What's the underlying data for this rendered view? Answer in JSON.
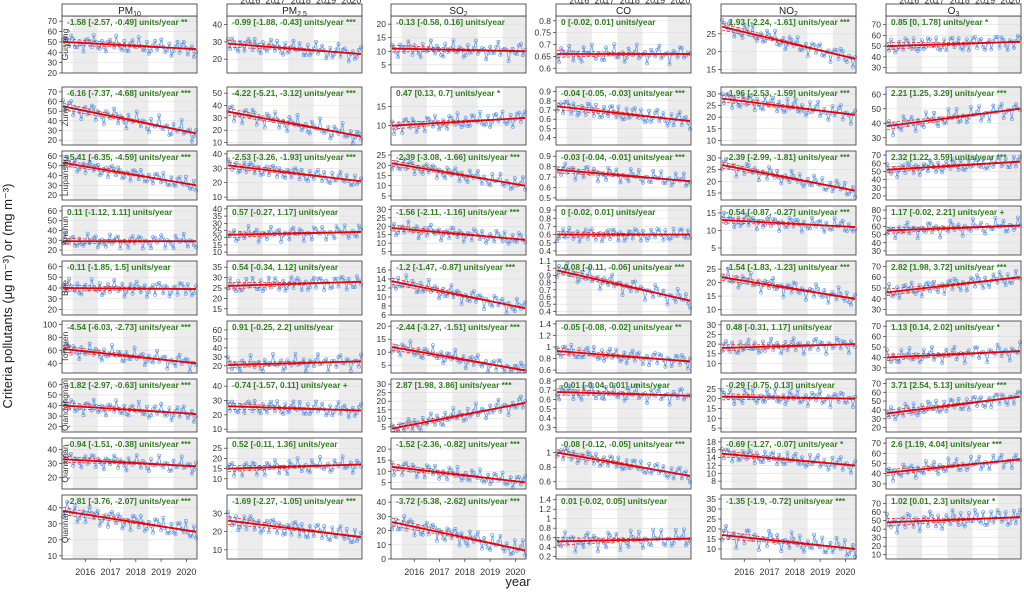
{
  "chart_data": {
    "type": "line",
    "xlabel": "year",
    "ylabel": "Criteria pollutants (μg m⁻³)  or  (mg m⁻³)",
    "x_ticks": [
      "2016",
      "2017",
      "2018",
      "2019",
      "2020"
    ],
    "pollutants": [
      "PM10",
      "PM2.5",
      "SO2",
      "CO",
      "NO2",
      "O3"
    ],
    "pollutant_labels": [
      {
        "base": "PM",
        "sub": "10"
      },
      {
        "base": "PM",
        "sub": "2.5"
      },
      {
        "base": "SO",
        "sub": "2"
      },
      {
        "base": "CO",
        "sub": ""
      },
      {
        "base": "NO",
        "sub": "2"
      },
      {
        "base": "O",
        "sub": "3"
      }
    ],
    "cities": [
      "Guiyang",
      "Zunyi",
      "Liupanshui",
      "Anshun",
      "Bijie",
      "Tongren",
      "Qiandongnan",
      "Qianxinan",
      "Qiannan"
    ],
    "panels": [
      [
        {
          "trend": "-1.58 [-2.57, -0.49] units/year **",
          "ylim": [
            20,
            75
          ],
          "ticks": [
            20,
            30,
            40,
            50,
            60,
            70
          ],
          "start": 50,
          "end": 43
        },
        {
          "trend": "-0.99 [-1.88, -0.43] units/year ***",
          "ylim": [
            12,
            45
          ],
          "ticks": [
            20,
            30,
            40
          ],
          "start": 29,
          "end": 23
        },
        {
          "trend": "-0.13 [-0.58, 0.16] units/year",
          "ylim": [
            2,
            23
          ],
          "ticks": [
            5,
            10,
            15,
            20
          ],
          "start": 11,
          "end": 10
        },
        {
          "trend": "0 [-0.02, 0.01] units/year",
          "ylim": [
            0.58,
            0.82
          ],
          "ticks": [
            0.6,
            0.65,
            0.7,
            0.75,
            0.8
          ],
          "start": 0.66,
          "end": 0.66
        },
        {
          "trend": "-1.93 [-2.24, -1.61] units/year ***",
          "ylim": [
            14,
            30
          ],
          "ticks": [
            15,
            20,
            25
          ],
          "start": 27,
          "end": 18
        },
        {
          "trend": "0.85 [0, 1.78] units/year *",
          "ylim": [
            25,
            78
          ],
          "ticks": [
            30,
            40,
            50,
            60,
            70
          ],
          "start": 50,
          "end": 54
        }
      ],
      [
        {
          "trend": "-6.16 [-7.37, -4.68] units/year ***",
          "ylim": [
            15,
            75
          ],
          "ticks": [
            20,
            30,
            40,
            50,
            60,
            70
          ],
          "start": 55,
          "end": 27
        },
        {
          "trend": "-4.22 [-5.21, -3.12] units/year ***",
          "ylim": [
            8,
            55
          ],
          "ticks": [
            10,
            20,
            30,
            40,
            50
          ],
          "start": 35,
          "end": 15
        },
        {
          "trend": "0.47 [0.13, 0.7] units/year *",
          "ylim": [
            5,
            20
          ],
          "ticks": [
            10,
            15
          ],
          "start": 10,
          "end": 12
        },
        {
          "trend": "-0.04 [-0.05, -0.03] units/year ***",
          "ylim": [
            0.32,
            0.95
          ],
          "ticks": [
            0.4,
            0.5,
            0.6,
            0.7,
            0.8,
            0.9
          ],
          "start": 0.74,
          "end": 0.58
        },
        {
          "trend": "-1.96 [-2.53, -1.59] units/year ***",
          "ylim": [
            8,
            33
          ],
          "ticks": [
            10,
            15,
            20,
            25,
            30
          ],
          "start": 28,
          "end": 21
        },
        {
          "trend": "2.21 [1.25, 3.29] units/year ***",
          "ylim": [
            25,
            65
          ],
          "ticks": [
            30,
            40,
            50,
            60
          ],
          "start": 38,
          "end": 50
        }
      ],
      [
        {
          "trend": "-5.41 [-6.35, -4.59] units/year ***",
          "ylim": [
            15,
            65
          ],
          "ticks": [
            20,
            30,
            40,
            50,
            60
          ],
          "start": 53,
          "end": 30
        },
        {
          "trend": "-2.53 [-3.26, -1.93] units/year ***",
          "ylim": [
            8,
            42
          ],
          "ticks": [
            10,
            20,
            30,
            40
          ],
          "start": 32,
          "end": 21
        },
        {
          "trend": "-2.39 [-3.08, -1.66] units/year ***",
          "ylim": [
            3,
            27
          ],
          "ticks": [
            5,
            10,
            15,
            20,
            25
          ],
          "start": 21,
          "end": 10
        },
        {
          "trend": "-0.03 [-0.04, -0.01] units/year ***",
          "ylim": [
            0.48,
            0.95
          ],
          "ticks": [
            0.5,
            0.6,
            0.7,
            0.8,
            0.9
          ],
          "start": 0.77,
          "end": 0.66
        },
        {
          "trend": "-2.39 [-2.99, -1.81] units/year ***",
          "ylim": [
            12,
            33
          ],
          "ticks": [
            15,
            20,
            25,
            30
          ],
          "start": 27,
          "end": 16
        },
        {
          "trend": "2.32 [1.22, 3.59] units/year ***",
          "ylim": [
            15,
            75
          ],
          "ticks": [
            20,
            30,
            40,
            50,
            60,
            70
          ],
          "start": 52,
          "end": 62
        }
      ],
      [
        {
          "trend": "0.11 [-1.12, 1.11] units/year",
          "ylim": [
            15,
            65
          ],
          "ticks": [
            20,
            30,
            40,
            50,
            60
          ],
          "start": 29,
          "end": 29
        },
        {
          "trend": "0.57 [-0.27, 1.17] units/year",
          "ylim": [
            8,
            42
          ],
          "ticks": [
            10,
            15,
            20,
            25,
            30,
            35,
            40
          ],
          "start": 22,
          "end": 24
        },
        {
          "trend": "-1.56 [-2.11, -1.16] units/year ***",
          "ylim": [
            3,
            32
          ],
          "ticks": [
            5,
            10,
            15,
            20,
            25,
            30
          ],
          "start": 19,
          "end": 12
        },
        {
          "trend": "0 [-0.02, 0.01] units/year",
          "ylim": [
            0.35,
            0.95
          ],
          "ticks": [
            0.4,
            0.5,
            0.6,
            0.7,
            0.8,
            0.9
          ],
          "start": 0.6,
          "end": 0.6
        },
        {
          "trend": "-0.54 [-0.87, -0.27] units/year ***",
          "ylim": [
            3,
            17
          ],
          "ticks": [
            5,
            10,
            15
          ],
          "start": 13,
          "end": 11
        },
        {
          "trend": "1.17 [-0.02, 2.21] units/year +",
          "ylim": [
            25,
            85
          ],
          "ticks": [
            30,
            40,
            50,
            60,
            70,
            80
          ],
          "start": 55,
          "end": 61
        }
      ],
      [
        {
          "trend": "-0.11 [-1.85, 1.5] units/year",
          "ylim": [
            15,
            65
          ],
          "ticks": [
            20,
            30,
            40,
            50,
            60
          ],
          "start": 40,
          "end": 39
        },
        {
          "trend": "0.54 [-0.34, 1.12] units/year",
          "ylim": [
            12,
            38
          ],
          "ticks": [
            15,
            20,
            25,
            30,
            35
          ],
          "start": 26,
          "end": 28
        },
        {
          "trend": "-1.2 [-1.47, -0.87] units/year ***",
          "ylim": [
            6,
            18
          ],
          "ticks": [
            6,
            8,
            10,
            12,
            14,
            16
          ],
          "start": 13.5,
          "end": 7.5
        },
        {
          "trend": "-0.08 [-0.11, -0.06] units/year ***",
          "ylim": [
            0.35,
            1.1
          ],
          "ticks": [
            0.4,
            0.5,
            0.6,
            0.7,
            0.8,
            0.9,
            1,
            1.1
          ],
          "start": 0.97,
          "end": 0.55
        },
        {
          "trend": "-1.54 [-1.83, -1.23] units/year ***",
          "ylim": [
            8,
            28
          ],
          "ticks": [
            10,
            15,
            20,
            25
          ],
          "start": 22,
          "end": 14
        },
        {
          "trend": "2.82 [1.98, 3.72] units/year ***",
          "ylim": [
            25,
            75
          ],
          "ticks": [
            30,
            40,
            50,
            60,
            70
          ],
          "start": 46,
          "end": 60
        }
      ],
      [
        {
          "trend": "-4.54 [-6.03, -2.73] units/year ***",
          "ylim": [
            25,
            105
          ],
          "ticks": [
            40,
            60,
            80,
            100
          ],
          "start": 62,
          "end": 40
        },
        {
          "trend": "0.91 [-0.25, 2.2] units/year",
          "ylim": [
            12,
            70
          ],
          "ticks": [
            20,
            30,
            40,
            50,
            60
          ],
          "start": 21,
          "end": 25
        },
        {
          "trend": "-2.44 [-3.27, -1.51] units/year ***",
          "ylim": [
            2,
            22
          ],
          "ticks": [
            5,
            10,
            15,
            20
          ],
          "start": 12,
          "end": 3
        },
        {
          "trend": "-0.05 [-0.08, -0.02] units/year **",
          "ylim": [
            0.55,
            1.45
          ],
          "ticks": [
            0.6,
            0.8,
            1,
            1.2,
            1.4
          ],
          "start": 0.93,
          "end": 0.75
        },
        {
          "trend": "0.48 [-0.31, 1.17] units/year",
          "ylim": [
            5,
            32
          ],
          "ticks": [
            10,
            15,
            20,
            25,
            30
          ],
          "start": 18,
          "end": 20
        },
        {
          "trend": "1.13 [0.14, 2.02] units/year *",
          "ylim": [
            25,
            75
          ],
          "ticks": [
            30,
            40,
            50,
            60,
            70
          ],
          "start": 40,
          "end": 46
        }
      ],
      [
        {
          "trend": "-1.82 [-2.97, -0.63] units/year ***",
          "ylim": [
            15,
            65
          ],
          "ticks": [
            20,
            30,
            40,
            50,
            60
          ],
          "start": 40,
          "end": 32
        },
        {
          "trend": "-0.74 [-1.57, 0.11] units/year +",
          "ylim": [
            8,
            45
          ],
          "ticks": [
            10,
            20,
            30,
            40
          ],
          "start": 26,
          "end": 23
        },
        {
          "trend": "2.87 [1.98, 3.86] units/year ***",
          "ylim": [
            2,
            33
          ],
          "ticks": [
            5,
            10,
            15,
            20,
            25,
            30
          ],
          "start": 4,
          "end": 19
        },
        {
          "trend": "-0.01 [-0.04, 0.01] units/year",
          "ylim": [
            0.25,
            0.82
          ],
          "ticks": [
            0.3,
            0.4,
            0.5,
            0.6,
            0.7,
            0.8
          ],
          "start": 0.68,
          "end": 0.64
        },
        {
          "trend": "-0.29 [-0.75, 0.13] units/year",
          "ylim": [
            3,
            30
          ],
          "ticks": [
            5,
            10,
            15,
            20,
            25
          ],
          "start": 21,
          "end": 20
        },
        {
          "trend": "3.71 [2.54, 5.13] units/year ***",
          "ylim": [
            15,
            75
          ],
          "ticks": [
            20,
            30,
            40,
            50,
            60,
            70
          ],
          "start": 36,
          "end": 55
        }
      ],
      [
        {
          "trend": "-0.94 [-1.51, -0.38] units/year ***",
          "ylim": [
            12,
            48
          ],
          "ticks": [
            20,
            30,
            40
          ],
          "start": 33,
          "end": 28
        },
        {
          "trend": "0.52 [-0.11, 1.36] units/year",
          "ylim": [
            5,
            30
          ],
          "ticks": [
            10,
            15,
            20,
            25
          ],
          "start": 15,
          "end": 17
        },
        {
          "trend": "-1.52 [-2.36, -0.82] units/year ***",
          "ylim": [
            2,
            25
          ],
          "ticks": [
            5,
            10,
            15,
            20
          ],
          "start": 12,
          "end": 5
        },
        {
          "trend": "-0.08 [-0.12, -0.05] units/year ***",
          "ylim": [
            0.5,
            1.2
          ],
          "ticks": [
            0.6,
            0.8,
            1
          ],
          "start": 1.0,
          "end": 0.68
        },
        {
          "trend": "-0.69 [-1.27, -0.07] units/year *",
          "ylim": [
            6,
            19
          ],
          "ticks": [
            8,
            10,
            12,
            14,
            16,
            18
          ],
          "start": 15,
          "end": 12
        },
        {
          "trend": "2.6 [1.19, 4.04] units/year ***",
          "ylim": [
            25,
            75
          ],
          "ticks": [
            30,
            40,
            50,
            60,
            70
          ],
          "start": 41,
          "end": 54
        }
      ],
      [
        {
          "trend": "-2.81 [-3.76, -2.07] units/year ***",
          "ylim": [
            8,
            48
          ],
          "ticks": [
            10,
            20,
            30,
            40
          ],
          "start": 38,
          "end": 25
        },
        {
          "trend": "-1.69 [-2.27, -1.05] units/year ***",
          "ylim": [
            5,
            40
          ],
          "ticks": [
            10,
            20,
            30
          ],
          "start": 26,
          "end": 17
        },
        {
          "trend": "-3.72 [-5.38, -2.62] units/year ***",
          "ylim": [
            0,
            45
          ],
          "ticks": [
            0,
            10,
            20,
            30,
            40
          ],
          "start": 26,
          "end": 6
        },
        {
          "trend": "0.01 [-0.02, 0.05] units/year",
          "ylim": [
            0.15,
            1.5
          ],
          "ticks": [
            0.2,
            0.4,
            0.6,
            0.8,
            1,
            1.2,
            1.4
          ],
          "start": 0.52,
          "end": 0.58
        },
        {
          "trend": "-1.35 [-1.9, -0.72] units/year ***",
          "ylim": [
            5,
            37
          ],
          "ticks": [
            10,
            15,
            20,
            25,
            30,
            35
          ],
          "start": 17,
          "end": 10
        },
        {
          "trend": "1.02 [0.01, 2.3] units/year *",
          "ylim": [
            5,
            80
          ],
          "ticks": [
            10,
            20,
            30,
            40,
            50,
            60,
            70
          ],
          "start": 48,
          "end": 54
        }
      ]
    ]
  }
}
